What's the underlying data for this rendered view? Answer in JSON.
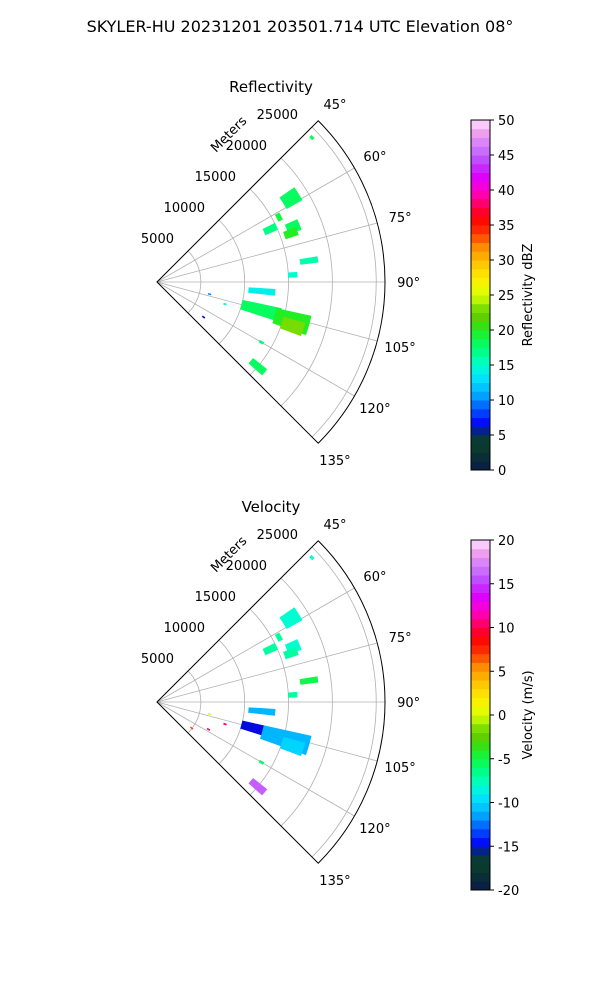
{
  "suptitle": "SKYLER-HU  20231201  203501.714 UTC Elevation 08°",
  "range_label": "Meters",
  "range_ticks": [
    5000,
    10000,
    15000,
    20000,
    25000
  ],
  "azimuth_ticks": [
    45,
    60,
    75,
    90,
    105,
    120,
    135
  ],
  "chart_data": [
    {
      "type": "polar-sector (PPI)",
      "title": "Reflectivity",
      "colorbar_label": "Reflectivity dBZ",
      "colorbar_range": [
        0,
        50
      ],
      "colorbar_ticks": [
        0,
        5,
        10,
        15,
        20,
        25,
        30,
        35,
        40,
        45,
        50
      ],
      "theta_range_deg": [
        45,
        135
      ],
      "r_range_m": [
        0,
        26000
      ],
      "grid": true,
      "echoes": [
        {
          "az": 47,
          "r0": 24000,
          "r1": 24300,
          "width": 1,
          "value": 18
        },
        {
          "az": 58,
          "r0": 17000,
          "r1": 19000,
          "width": 5,
          "value": 18
        },
        {
          "az": 62,
          "r0": 15500,
          "r1": 16000,
          "width": 3,
          "value": 19
        },
        {
          "az": 65,
          "r0": 13500,
          "r1": 15000,
          "width": 3,
          "value": 17
        },
        {
          "az": 68,
          "r0": 16000,
          "r1": 17500,
          "width": 4,
          "value": 18
        },
        {
          "az": 70,
          "r0": 15500,
          "r1": 17000,
          "width": 3,
          "value": 20
        },
        {
          "az": 82,
          "r0": 16500,
          "r1": 18500,
          "width": 2,
          "value": 16
        },
        {
          "az": 87,
          "r0": 15000,
          "r1": 16000,
          "width": 2,
          "value": 15
        },
        {
          "az": 95,
          "r0": 10500,
          "r1": 13500,
          "width": 3,
          "value": 14
        },
        {
          "az": 105,
          "r0": 10000,
          "r1": 14500,
          "width": 6,
          "value": 18
        },
        {
          "az": 106,
          "r0": 14000,
          "r1": 18000,
          "width": 7,
          "value": 20
        },
        {
          "az": 108,
          "r0": 15000,
          "r1": 17500,
          "width": 5,
          "value": 23
        },
        {
          "az": 120,
          "r0": 13500,
          "r1": 14000,
          "width": 1,
          "value": 17
        },
        {
          "az": 130,
          "r0": 14000,
          "r1": 16000,
          "width": 3,
          "value": 18
        },
        {
          "az": 103,
          "r0": 6000,
          "r1": 6300,
          "width": 1,
          "value": 10
        },
        {
          "az": 108,
          "r0": 8000,
          "r1": 8300,
          "width": 1,
          "value": 15
        },
        {
          "az": 127,
          "r0": 6500,
          "r1": 6800,
          "width": 1,
          "value": 6
        }
      ]
    },
    {
      "type": "polar-sector (PPI)",
      "title": "Velocity",
      "colorbar_label": "Velocity (m/s)",
      "colorbar_range": [
        -20,
        20
      ],
      "colorbar_ticks": [
        -20,
        -15,
        -10,
        -5,
        0,
        5,
        10,
        15,
        20
      ],
      "theta_range_deg": [
        45,
        135
      ],
      "r_range_m": [
        0,
        26000
      ],
      "grid": true,
      "echoes": [
        {
          "az": 47,
          "r0": 24000,
          "r1": 24300,
          "width": 1,
          "value": -8
        },
        {
          "az": 58,
          "r0": 17000,
          "r1": 19000,
          "width": 5,
          "value": -8
        },
        {
          "az": 62,
          "r0": 15500,
          "r1": 16000,
          "width": 3,
          "value": -7
        },
        {
          "az": 65,
          "r0": 13500,
          "r1": 15000,
          "width": 3,
          "value": -7
        },
        {
          "az": 68,
          "r0": 16000,
          "r1": 17500,
          "width": 4,
          "value": -8
        },
        {
          "az": 70,
          "r0": 15500,
          "r1": 17000,
          "width": 3,
          "value": -7
        },
        {
          "az": 82,
          "r0": 16500,
          "r1": 18500,
          "width": 2,
          "value": -5
        },
        {
          "az": 87,
          "r0": 15000,
          "r1": 16000,
          "width": 2,
          "value": -7
        },
        {
          "az": 95,
          "r0": 10500,
          "r1": 13500,
          "width": 3,
          "value": -11
        },
        {
          "az": 105,
          "r0": 10000,
          "r1": 12500,
          "width": 5,
          "value": -15
        },
        {
          "az": 106,
          "r0": 12500,
          "r1": 18000,
          "width": 7,
          "value": -11
        },
        {
          "az": 108,
          "r0": 15000,
          "r1": 17500,
          "width": 5,
          "value": -10
        },
        {
          "az": 120,
          "r0": 13500,
          "r1": 14000,
          "width": 1,
          "value": -6
        },
        {
          "az": 130,
          "r0": 14000,
          "r1": 16000,
          "width": 3,
          "value": 16
        },
        {
          "az": 103,
          "r0": 6000,
          "r1": 6300,
          "width": 1,
          "value": 1
        },
        {
          "az": 108,
          "r0": 8000,
          "r1": 8300,
          "width": 1,
          "value": 11
        },
        {
          "az": 118,
          "r0": 6500,
          "r1": 6800,
          "width": 1,
          "value": 11
        },
        {
          "az": 127,
          "r0": 4800,
          "r1": 5100,
          "width": 1,
          "value": 7
        }
      ]
    }
  ]
}
